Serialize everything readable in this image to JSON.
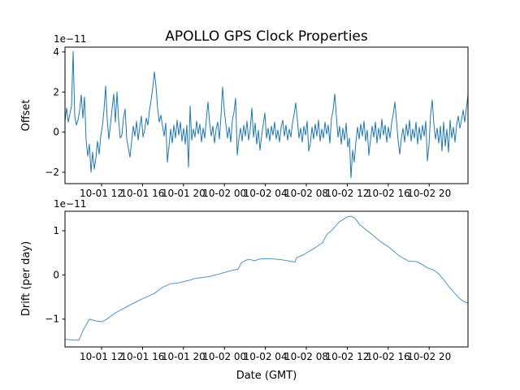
{
  "figure": {
    "title": "APOLLO GPS Clock Properties",
    "xlabel": "Date (GMT)",
    "background_color": "#ffffff",
    "line_color_offset": "#1f77b4",
    "line_color_drift": "#3d87c3"
  },
  "chart_data": [
    {
      "type": "line",
      "title": "APOLLO GPS Clock Properties",
      "ylabel": "Offset",
      "offset_exponent_text": "1e−11",
      "x_unit": "hours since 10-01 00:00 GMT",
      "xlim": [
        8.43,
        47.79
      ],
      "ylim_e11": [
        -2.57,
        4.24
      ],
      "grid": false,
      "legend": "none",
      "xticks": {
        "hours": [
          12,
          16,
          20,
          24,
          28,
          32,
          36,
          40,
          44
        ],
        "labels": [
          "10-01 12",
          "10-01 16",
          "10-01 20",
          "10-02 00",
          "10-02 04",
          "10-02 08",
          "10-02 12",
          "10-02 16",
          "10-02 20"
        ]
      },
      "yticks": {
        "values_e11": [
          4,
          2,
          0,
          -2
        ],
        "labels": [
          "4",
          "2",
          "0",
          "−2"
        ]
      },
      "series": [
        {
          "name": "offset",
          "color": "#1f77b4",
          "t_start": 8.43,
          "t_end": 47.79,
          "values_e11": [
            0.55,
            1.2,
            0.5,
            0.9,
            1.3,
            4.03,
            0.8,
            0.35,
            0.6,
            1.1,
            1.86,
            0.7,
            1.75,
            -0.4,
            -1.2,
            -0.6,
            -2.0,
            -1.0,
            -1.85,
            -1.3,
            -0.45,
            -1.1,
            -0.2,
            0.3,
            1.1,
            2.3,
            0.6,
            -0.35,
            0.4,
            1.2,
            1.9,
            0.5,
            2.0,
            0.6,
            -0.3,
            -0.15,
            0.7,
            1.15,
            -0.35,
            -0.8,
            -1.25,
            -0.45,
            0.3,
            -0.2,
            0.55,
            -0.4,
            0.25,
            0.8,
            -0.25,
            0.1,
            0.7,
            0.35,
            1.1,
            1.6,
            2.2,
            3.0,
            2.3,
            1.2,
            0.5,
            0.85,
            0.3,
            -0.2,
            0.45,
            -1.5,
            -0.7,
            0.15,
            -0.55,
            0.35,
            -0.3,
            0.6,
            -0.15,
            0.5,
            -0.45,
            0.2,
            -0.6,
            0.35,
            -1.75,
            1.3,
            -0.4,
            0.15,
            -0.25,
            0.55,
            -0.1,
            0.4,
            -0.5,
            0.2,
            -0.3,
            0.65,
            1.5,
            0.45,
            -0.2,
            0.3,
            -0.55,
            0.15,
            0.5,
            -0.35,
            0.8,
            2.25,
            1.1,
            0.4,
            -0.3,
            0.25,
            -0.5,
            0.6,
            1.0,
            1.7,
            -1.15,
            -0.35,
            0.2,
            -0.45,
            0.35,
            -0.2,
            0.55,
            -0.4,
            0.15,
            1.2,
            -0.25,
            0.45,
            -0.6,
            0.1,
            -0.9,
            -0.2,
            0.4,
            0.95,
            -0.3,
            0.2,
            -0.45,
            0.3,
            -0.15,
            0.5,
            -0.35,
            0.1,
            -0.5,
            0.25,
            0.6,
            -0.2,
            0.35,
            -0.4,
            0.15,
            -0.25,
            0.45,
            0.9,
            1.45,
            0.6,
            -0.3,
            0.2,
            -0.5,
            0.3,
            -0.15,
            0.55,
            -0.95,
            -0.55,
            0.25,
            -0.35,
            0.4,
            -0.2,
            0.6,
            -0.45,
            0.15,
            -0.3,
            0.5,
            -0.1,
            0.35,
            -0.55,
            0.7,
            1.1,
            1.9,
            0.8,
            -0.25,
            0.3,
            -0.6,
            0.2,
            -0.4,
            0.45,
            -0.75,
            -0.3,
            -2.28,
            -0.9,
            -1.5,
            -0.5,
            0.25,
            -0.35,
            0.4,
            -0.2,
            0.55,
            -0.45,
            0.1,
            -1.15,
            -0.4,
            0.3,
            -0.25,
            0.5,
            -0.55,
            0.2,
            -0.35,
            0.65,
            -0.15,
            0.35,
            -0.5,
            0.25,
            -0.3,
            0.45,
            0.9,
            1.5,
            0.55,
            -0.4,
            -1.1,
            -0.3,
            0.2,
            -0.5,
            0.4,
            -0.2,
            0.6,
            -0.45,
            0.15,
            -0.3,
            0.5,
            -0.6,
            0.25,
            -0.4,
            0.35,
            -0.2,
            0.55,
            -1.44,
            -0.65,
            0.9,
            1.6,
            0.4,
            -0.35,
            0.2,
            -0.55,
            0.3,
            -0.95,
            0.5,
            -0.7,
            0.15,
            -1.0,
            0.6,
            -0.3,
            0.25,
            -0.5,
            0.35,
            0.8,
            0.2,
            0.6,
            1.1,
            0.5,
            1.2,
            1.86
          ]
        }
      ]
    },
    {
      "type": "line",
      "ylabel": "Drift (per day)",
      "xlabel": "Date (GMT)",
      "offset_exponent_text": "1e−11",
      "x_unit": "hours since 10-01 00:00 GMT",
      "xlim": [
        8.43,
        47.79
      ],
      "ylim_e11": [
        -1.63,
        1.44
      ],
      "grid": false,
      "legend": "none",
      "xticks": {
        "hours": [
          12,
          16,
          20,
          24,
          28,
          32,
          36,
          40,
          44
        ],
        "labels": [
          "10-01 12",
          "10-01 16",
          "10-01 20",
          "10-02 00",
          "10-02 04",
          "10-02 08",
          "10-02 12",
          "10-02 16",
          "10-02 20"
        ]
      },
      "yticks": {
        "values_e11": [
          1,
          0,
          -1
        ],
        "labels": [
          "1",
          "0",
          "−1"
        ]
      },
      "series": [
        {
          "name": "drift",
          "color": "#3d87c3",
          "points": [
            [
              8.43,
              -1.46
            ],
            [
              9.78,
              -1.48
            ],
            [
              10.18,
              -1.26
            ],
            [
              10.81,
              -1.0
            ],
            [
              11.37,
              -1.04
            ],
            [
              12.0,
              -1.06
            ],
            [
              12.4,
              -1.02
            ],
            [
              13.35,
              -0.86
            ],
            [
              14.54,
              -0.71
            ],
            [
              15.81,
              -0.56
            ],
            [
              17.16,
              -0.42
            ],
            [
              17.96,
              -0.28
            ],
            [
              18.75,
              -0.2
            ],
            [
              19.54,
              -0.18
            ],
            [
              20.58,
              -0.12
            ],
            [
              21.13,
              -0.08
            ],
            [
              22.48,
              -0.04
            ],
            [
              23.51,
              0.02
            ],
            [
              24.54,
              0.09
            ],
            [
              25.34,
              0.13
            ],
            [
              25.65,
              0.27
            ],
            [
              26.05,
              0.33
            ],
            [
              26.45,
              0.35
            ],
            [
              26.92,
              0.32
            ],
            [
              27.48,
              0.36
            ],
            [
              28.11,
              0.37
            ],
            [
              28.83,
              0.36
            ],
            [
              29.62,
              0.34
            ],
            [
              30.41,
              0.31
            ],
            [
              30.89,
              0.29
            ],
            [
              31.05,
              0.39
            ],
            [
              31.68,
              0.45
            ],
            [
              32.4,
              0.55
            ],
            [
              33.03,
              0.64
            ],
            [
              33.59,
              0.73
            ],
            [
              33.98,
              0.91
            ],
            [
              34.46,
              1.0
            ],
            [
              35.17,
              1.19
            ],
            [
              35.97,
              1.31
            ],
            [
              36.36,
              1.33
            ],
            [
              36.76,
              1.28
            ],
            [
              37.24,
              1.13
            ],
            [
              37.79,
              1.03
            ],
            [
              38.59,
              0.88
            ],
            [
              39.38,
              0.73
            ],
            [
              40.17,
              0.61
            ],
            [
              40.97,
              0.45
            ],
            [
              41.6,
              0.36
            ],
            [
              42.0,
              0.31
            ],
            [
              42.79,
              0.3
            ],
            [
              43.35,
              0.23
            ],
            [
              43.9,
              0.15
            ],
            [
              44.38,
              0.12
            ],
            [
              44.94,
              0.02
            ],
            [
              45.49,
              -0.13
            ],
            [
              45.97,
              -0.28
            ],
            [
              46.52,
              -0.42
            ],
            [
              47.08,
              -0.56
            ],
            [
              47.55,
              -0.62
            ],
            [
              47.79,
              -0.63
            ]
          ]
        }
      ]
    }
  ]
}
